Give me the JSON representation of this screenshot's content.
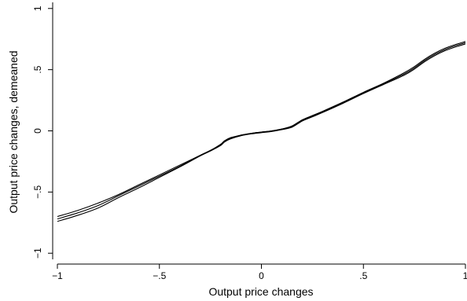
{
  "chart_data": {
    "type": "line",
    "title": "",
    "xlabel": "Output price changes",
    "ylabel": "Output price changes, demeaned",
    "xlim": [
      -1,
      1
    ],
    "ylim": [
      -1.05,
      1.05
    ],
    "grid": false,
    "x_ticks": [
      {
        "value": -1,
        "label": "−1"
      },
      {
        "value": -0.5,
        "label": "−.5"
      },
      {
        "value": 0,
        "label": "0"
      },
      {
        "value": 0.5,
        "label": ".5"
      },
      {
        "value": 1,
        "label": "1"
      }
    ],
    "y_ticks": [
      {
        "value": -1,
        "label": "−1"
      },
      {
        "value": -0.5,
        "label": "−.5"
      },
      {
        "value": 0,
        "label": "0"
      },
      {
        "value": 0.5,
        "label": ".5"
      },
      {
        "value": 1,
        "label": "1"
      }
    ],
    "x": [
      -1.0,
      -0.9,
      -0.8,
      -0.7,
      -0.6,
      -0.5,
      -0.4,
      -0.3,
      -0.25,
      -0.2,
      -0.18,
      -0.15,
      -0.1,
      -0.05,
      0.0,
      0.05,
      0.1,
      0.15,
      0.2,
      0.25,
      0.3,
      0.4,
      0.5,
      0.6,
      0.7,
      0.75,
      0.8,
      0.85,
      0.9,
      0.95,
      1.0
    ],
    "series": [
      {
        "values": [
          -0.7,
          -0.65,
          -0.59,
          -0.52,
          -0.44,
          -0.36,
          -0.28,
          -0.2,
          -0.16,
          -0.11,
          -0.08,
          -0.055,
          -0.035,
          -0.02,
          -0.01,
          0.0,
          0.015,
          0.04,
          0.09,
          0.125,
          0.16,
          0.235,
          0.315,
          0.39,
          0.475,
          0.525,
          0.585,
          0.635,
          0.675,
          0.705,
          0.73
        ]
      },
      {
        "values": [
          -0.72,
          -0.67,
          -0.61,
          -0.53,
          -0.45,
          -0.37,
          -0.29,
          -0.2,
          -0.16,
          -0.115,
          -0.085,
          -0.06,
          -0.035,
          -0.02,
          -0.01,
          0.0,
          0.015,
          0.035,
          0.085,
          0.12,
          0.155,
          0.23,
          0.31,
          0.385,
          0.465,
          0.515,
          0.575,
          0.625,
          0.665,
          0.695,
          0.72
        ]
      },
      {
        "values": [
          -0.74,
          -0.69,
          -0.63,
          -0.545,
          -0.465,
          -0.38,
          -0.295,
          -0.205,
          -0.165,
          -0.12,
          -0.09,
          -0.065,
          -0.04,
          -0.025,
          -0.015,
          -0.005,
          0.01,
          0.03,
          0.08,
          0.115,
          0.15,
          0.225,
          0.305,
          0.38,
          0.455,
          0.505,
          0.565,
          0.615,
          0.655,
          0.685,
          0.71
        ]
      }
    ]
  }
}
